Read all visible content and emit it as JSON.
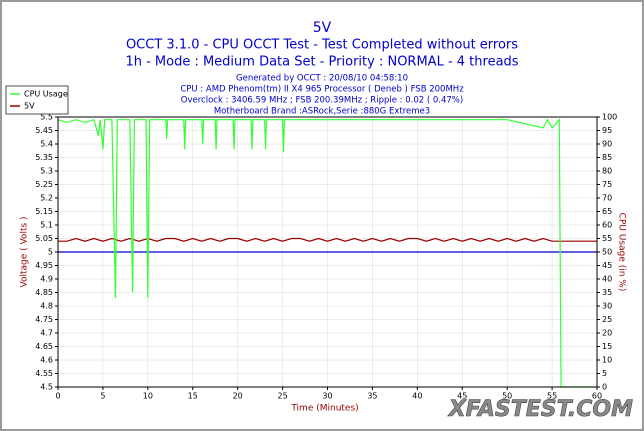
{
  "chart_data": {
    "type": "line",
    "title": "5V",
    "subtitle": "OCCT 3.1.0 - CPU OCCT Test - Test Completed without errors",
    "subtitle2": "1h - Mode : Medium Data Set - Priority : NORMAL - 4 threads",
    "info": [
      "Generated by OCCT : 20/08/10 04:58:10",
      "CPU : AMD Phenom(tm) II X4 965 Processor ( Deneb ) FSB 200MHz",
      "Overclock : 3406.59 MHz ; FSB 200.39MHz ; Ripple : 0.02 ( 0.47%)",
      "Motherboard Brand :ASRock,Serie :880G Extreme3"
    ],
    "xlabel": "Time (Minutes)",
    "ylabel": "Voltage ( Volts )",
    "y2label": "CPU Usage (in %)",
    "watermark": "XFASTEST.COM",
    "xlim": [
      0,
      60
    ],
    "xticks": [
      0,
      5,
      10,
      15,
      20,
      25,
      30,
      35,
      40,
      45,
      50,
      55,
      60
    ],
    "ylim": [
      4.5,
      5.5
    ],
    "yticks": [
      4.5,
      4.55,
      4.6,
      4.65,
      4.7,
      4.75,
      4.8,
      4.85,
      4.9,
      4.95,
      5,
      5.05,
      5.1,
      5.15,
      5.2,
      5.25,
      5.3,
      5.35,
      5.4,
      5.45,
      5.5
    ],
    "y2lim": [
      0,
      100
    ],
    "y2ticks": [
      0,
      5,
      10,
      15,
      20,
      25,
      30,
      35,
      40,
      45,
      50,
      55,
      60,
      65,
      70,
      75,
      80,
      85,
      90,
      95,
      100
    ],
    "grid": true,
    "legend": "top-left",
    "hlines": [
      {
        "value": 5,
        "color": "#0000cc"
      }
    ],
    "series": [
      {
        "name": "CPU Usage",
        "color": "#33ff33",
        "axis": "y2",
        "x": [
          0,
          1,
          2,
          3,
          4,
          4.5,
          4.7,
          5,
          5.2,
          6,
          6.4,
          6.6,
          8,
          8.3,
          8.5,
          9.8,
          10,
          10.2,
          12,
          12.1,
          12.2,
          14,
          14.1,
          14.2,
          16,
          16.1,
          16.2,
          17.5,
          17.6,
          17.7,
          19.5,
          19.6,
          19.7,
          21.5,
          21.6,
          21.7,
          23,
          23.1,
          23.2,
          25,
          25.1,
          25.2,
          30,
          33,
          40,
          50,
          54,
          54.5,
          55,
          55.8,
          56,
          56.2,
          60
        ],
        "values": [
          99,
          98,
          99,
          98,
          99,
          93,
          99,
          88,
          99,
          99,
          33,
          99,
          99,
          35,
          99,
          99,
          33,
          99,
          99,
          92,
          99,
          99,
          88,
          99,
          99,
          90,
          99,
          99,
          88,
          99,
          99,
          88,
          99,
          99,
          88,
          99,
          99,
          88,
          99,
          99,
          87,
          99,
          99,
          99,
          99,
          99,
          96,
          99,
          96,
          99,
          0,
          0,
          0
        ]
      },
      {
        "name": "5V",
        "color": "#990000",
        "axis": "y",
        "x": [
          0,
          1,
          2,
          3,
          4,
          5,
          6,
          7,
          8,
          9,
          10,
          11,
          12,
          13,
          14,
          15,
          16,
          17,
          18,
          19,
          20,
          21,
          22,
          23,
          24,
          25,
          26,
          27,
          28,
          29,
          30,
          31,
          32,
          33,
          34,
          35,
          36,
          37,
          38,
          39,
          40,
          41,
          42,
          43,
          44,
          45,
          46,
          47,
          48,
          49,
          50,
          51,
          52,
          53,
          54,
          55,
          56,
          57,
          58,
          59,
          60
        ],
        "values": [
          5.04,
          5.04,
          5.05,
          5.04,
          5.05,
          5.04,
          5.05,
          5.04,
          5.05,
          5.04,
          5.05,
          5.04,
          5.05,
          5.05,
          5.04,
          5.05,
          5.04,
          5.05,
          5.04,
          5.05,
          5.05,
          5.04,
          5.05,
          5.04,
          5.05,
          5.04,
          5.05,
          5.05,
          5.04,
          5.05,
          5.04,
          5.05,
          5.04,
          5.05,
          5.04,
          5.05,
          5.04,
          5.05,
          5.04,
          5.05,
          5.05,
          5.04,
          5.05,
          5.04,
          5.05,
          5.04,
          5.05,
          5.04,
          5.05,
          5.04,
          5.05,
          5.04,
          5.05,
          5.04,
          5.05,
          5.04,
          5.04,
          5.04,
          5.04,
          5.04,
          5.04
        ]
      }
    ]
  }
}
